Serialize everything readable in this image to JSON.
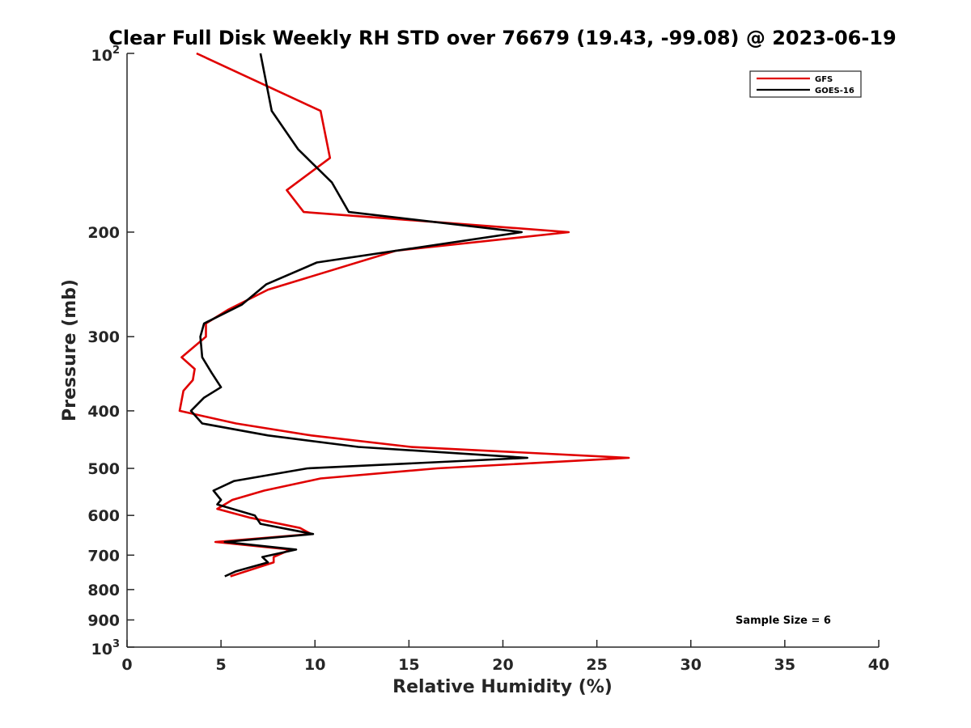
{
  "chart_data": {
    "type": "line",
    "title": "Clear Full Disk Weekly RH STD over 76679 (19.43, -99.08) @ 2023-06-19",
    "xlabel": "Relative Humidity (%)",
    "ylabel": "Pressure (mb)",
    "xlim": [
      0,
      40
    ],
    "ylim": [
      100,
      1000
    ],
    "y_scale": "log",
    "y_reversed": true,
    "grid": false,
    "legend_position": "top-right",
    "x_ticks": [
      0,
      5,
      10,
      15,
      20,
      25,
      30,
      35,
      40
    ],
    "y_ticks": [
      {
        "value": 100,
        "base": "10",
        "exp": "2"
      },
      {
        "value": 200,
        "label": "200"
      },
      {
        "value": 300,
        "label": "300"
      },
      {
        "value": 400,
        "label": "400"
      },
      {
        "value": 500,
        "label": "500"
      },
      {
        "value": 600,
        "label": "600"
      },
      {
        "value": 700,
        "label": "700"
      },
      {
        "value": 800,
        "label": "800"
      },
      {
        "value": 900,
        "label": "900"
      },
      {
        "value": 1000,
        "base": "10",
        "exp": "3"
      }
    ],
    "annotation": "Sample Size = 6",
    "series": [
      {
        "name": "GFS",
        "color": "#e00000",
        "points": [
          [
            3.7,
            100
          ],
          [
            10.3,
            125
          ],
          [
            10.8,
            150
          ],
          [
            8.5,
            170
          ],
          [
            9.4,
            185
          ],
          [
            23.5,
            200
          ],
          [
            14.3,
            215
          ],
          [
            7.5,
            250
          ],
          [
            5.4,
            270
          ],
          [
            4.2,
            285
          ],
          [
            4.2,
            300
          ],
          [
            2.9,
            325
          ],
          [
            3.6,
            340
          ],
          [
            3.5,
            355
          ],
          [
            3.0,
            370
          ],
          [
            2.8,
            400
          ],
          [
            5.8,
            420
          ],
          [
            9.8,
            440
          ],
          [
            15.1,
            460
          ],
          [
            26.7,
            480
          ],
          [
            16.5,
            500
          ],
          [
            10.3,
            520
          ],
          [
            7.3,
            545
          ],
          [
            5.6,
            565
          ],
          [
            4.8,
            585
          ],
          [
            6.5,
            605
          ],
          [
            9.2,
            630
          ],
          [
            9.8,
            645
          ],
          [
            4.7,
            665
          ],
          [
            8.7,
            685
          ],
          [
            7.8,
            705
          ],
          [
            7.8,
            720
          ],
          [
            5.5,
            760
          ]
        ]
      },
      {
        "name": "GOES-16",
        "color": "#000000",
        "points": [
          [
            7.1,
            100
          ],
          [
            7.7,
            125
          ],
          [
            9.1,
            145
          ],
          [
            10.9,
            165
          ],
          [
            11.8,
            185
          ],
          [
            21.0,
            200
          ],
          [
            10.1,
            225
          ],
          [
            7.4,
            245
          ],
          [
            6.1,
            265
          ],
          [
            4.1,
            285
          ],
          [
            3.9,
            300
          ],
          [
            4.0,
            325
          ],
          [
            4.5,
            345
          ],
          [
            5.0,
            365
          ],
          [
            4.1,
            380
          ],
          [
            3.4,
            400
          ],
          [
            4.0,
            420
          ],
          [
            7.5,
            440
          ],
          [
            12.3,
            460
          ],
          [
            21.3,
            480
          ],
          [
            9.6,
            500
          ],
          [
            5.7,
            525
          ],
          [
            4.6,
            545
          ],
          [
            5.0,
            565
          ],
          [
            4.8,
            575
          ],
          [
            6.8,
            600
          ],
          [
            7.1,
            620
          ],
          [
            9.9,
            645
          ],
          [
            5.2,
            665
          ],
          [
            9.0,
            685
          ],
          [
            7.2,
            705
          ],
          [
            7.5,
            720
          ],
          [
            5.8,
            745
          ],
          [
            5.2,
            760
          ]
        ]
      }
    ]
  }
}
